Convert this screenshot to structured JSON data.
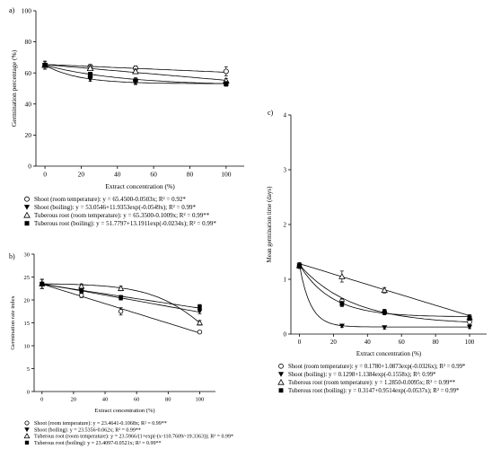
{
  "chart_data": [
    {
      "panel_label": "a)",
      "type": "scatter",
      "xlabel": "Extract concentration (%)",
      "ylabel": "Germination percentage (%)",
      "xlim": [
        -5,
        110
      ],
      "ylim": [
        0,
        100
      ],
      "xticks": [
        0,
        20,
        40,
        60,
        80,
        100
      ],
      "yticks": [
        0,
        20,
        40,
        60,
        80,
        100
      ],
      "x": [
        0,
        25,
        50,
        100
      ],
      "series": [
        {
          "name": "Shoot (room temperature)",
          "marker": "circle-open",
          "values": [
            65,
            64,
            63,
            61
          ],
          "errors": [
            2.5,
            1.5,
            1.5,
            3
          ],
          "equation": "y = 65.4500-0.0503x; R² = 0.92*",
          "fit": {
            "kind": "linear",
            "a": 65.45,
            "b": -0.0503
          }
        },
        {
          "name": "Shoot (boiling)",
          "marker": "triangle-down-filled",
          "values": [
            65,
            56,
            54,
            53
          ],
          "errors": [
            2.5,
            1.5,
            1.5,
            1.5
          ],
          "equation": "y = 53.0546+11.9353exp(-0.0549x); R² = 0.99*",
          "fit": {
            "kind": "exp",
            "a": 53.0546,
            "b": 11.9353,
            "c": -0.0549
          }
        },
        {
          "name": "Tuberous root (room temperature)",
          "marker": "triangle-up-open",
          "values": [
            65,
            63,
            61,
            55
          ],
          "errors": [
            2.5,
            1.5,
            1.5,
            1.5
          ],
          "equation": "y = 65.3500-0.1009x; R² = 0.99**",
          "fit": {
            "kind": "linear",
            "a": 65.35,
            "b": -0.1009
          }
        },
        {
          "name": "Tuberous root (boiling)",
          "marker": "square-filled",
          "values": [
            65,
            59,
            55,
            53
          ],
          "errors": [
            2.5,
            1.5,
            2,
            1.5
          ],
          "equation": "y = 51.7797+13.1911exp(-0.0234x); R² = 0.99*",
          "fit": {
            "kind": "exp",
            "a": 51.7797,
            "b": 13.1911,
            "c": -0.0234
          }
        }
      ]
    },
    {
      "panel_label": "b)",
      "type": "scatter",
      "xlabel": "Extract concentration (%)",
      "ylabel": "Germination rate index",
      "xlim": [
        -5,
        110
      ],
      "ylim": [
        0,
        30
      ],
      "xticks": [
        0,
        20,
        40,
        60,
        80,
        100
      ],
      "yticks": [
        0,
        5,
        10,
        15,
        20,
        25,
        30
      ],
      "x": [
        0,
        25,
        50,
        100
      ],
      "series": [
        {
          "name": "Shoot (room temperature)",
          "marker": "circle-open",
          "values": [
            23.5,
            21,
            17.5,
            13
          ],
          "errors": [
            1,
            0.5,
            0.8,
            0.3
          ],
          "equation": "y = 23.4641-0.1068x; R² = 0.99**",
          "fit": {
            "kind": "linear",
            "a": 23.4641,
            "b": -0.1068
          }
        },
        {
          "name": "Shoot (boiling)",
          "marker": "triangle-down-filled",
          "values": [
            23.5,
            22,
            20.5,
            17.5
          ],
          "errors": [
            1,
            0.5,
            0.5,
            0.5
          ],
          "equation": "y = 23.5356-0.062x; R² = 0.99**",
          "fit": {
            "kind": "linear",
            "a": 23.5356,
            "b": -0.062
          }
        },
        {
          "name": "Tuberous root (room temperature)",
          "marker": "triangle-up-open",
          "values": [
            23.5,
            23,
            22.5,
            15
          ],
          "errors": [
            1,
            0.5,
            0.5,
            0.5
          ],
          "equation": "y = 23.5966/(1+exp(-(x-110.7609/-19.3363)); R² = 0.99*",
          "fit": {
            "kind": "sigmoid",
            "a": 23.5966,
            "x0": 110.7609,
            "s": -19.3363
          }
        },
        {
          "name": "Tuberous root (boiling)",
          "marker": "square-filled",
          "values": [
            23.5,
            22,
            20.5,
            18.5
          ],
          "errors": [
            1,
            0.5,
            0.5,
            0.5
          ],
          "equation": "y = 23.4097-0.0521x; R² = 0.99**",
          "fit": {
            "kind": "linear",
            "a": 23.4097,
            "b": -0.0521
          }
        }
      ]
    },
    {
      "panel_label": "c)",
      "type": "scatter",
      "xlabel": "Extract concentration (%)",
      "ylabel": "Mean germination time (days)",
      "xlim": [
        -5,
        110
      ],
      "ylim": [
        0,
        4
      ],
      "xticks": [
        0,
        20,
        40,
        60,
        80,
        100
      ],
      "yticks": [
        0,
        1,
        2,
        3,
        4
      ],
      "x": [
        0,
        25,
        50,
        100
      ],
      "series": [
        {
          "name": "Shoot (room temperature)",
          "marker": "circle-open",
          "values": [
            1.25,
            0.6,
            0.4,
            0.22
          ],
          "errors": [
            0.05,
            0.05,
            0.05,
            0.05
          ],
          "equation": "y = 0.1780+1.0873exp(-0.0326x); R² = 0.99*",
          "fit": {
            "kind": "exp",
            "a": 0.178,
            "b": 1.0873,
            "c": -0.0326
          }
        },
        {
          "name": "Shoot (boiling)",
          "marker": "triangle-down-filled",
          "values": [
            1.25,
            0.15,
            0.12,
            0.13
          ],
          "errors": [
            0.05,
            0.03,
            0.03,
            0.03
          ],
          "equation": "y = 0.1298+1.1384exp(-0.1558x); R²: 0.99*",
          "fit": {
            "kind": "exp",
            "a": 0.1298,
            "b": 1.1384,
            "c": -0.1558
          }
        },
        {
          "name": "Tuberous root (room temperature)",
          "marker": "triangle-up-open",
          "values": [
            1.25,
            1.05,
            0.8,
            0.3
          ],
          "errors": [
            0.05,
            0.1,
            0.05,
            0.05
          ],
          "equation": "y = 1.2850-0.0095x; R² = 0.99**",
          "fit": {
            "kind": "linear",
            "a": 1.285,
            "b": -0.0095
          }
        },
        {
          "name": "Tuberous root (boiling)",
          "marker": "square-filled",
          "values": [
            1.25,
            0.55,
            0.4,
            0.3
          ],
          "errors": [
            0.05,
            0.05,
            0.05,
            0.05
          ],
          "equation": "y = 0.3147+0.9514exp(-0.0537x); R² = 0.99*",
          "fit": {
            "kind": "exp",
            "a": 0.3147,
            "b": 0.9514,
            "c": -0.0537
          }
        }
      ]
    }
  ]
}
